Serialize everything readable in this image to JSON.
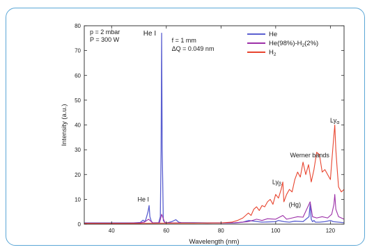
{
  "colors": {
    "frame": "#5aa6d6",
    "He": "#5a5fd0",
    "He_H2": "#9c2fa8",
    "H2": "#e8442e",
    "axis": "#222222"
  },
  "chart_data": {
    "type": "line",
    "xlabel": "Wavelength (nm)",
    "ylabel": "Intensity (a.u.)",
    "xlim": [
      30,
      125
    ],
    "ylim": [
      0,
      80
    ],
    "xticks": [
      40,
      60,
      80,
      100,
      120
    ],
    "yticks": [
      0,
      10,
      20,
      30,
      40,
      50,
      60,
      70,
      80
    ],
    "grid": false,
    "legend_position": "top-right",
    "params_left": [
      "p = 2 mbar",
      "P = 300 W"
    ],
    "params_right": [
      "f = 1 mm",
      "ΔQ = 0.049 nm"
    ],
    "annotations": [
      {
        "text": "He I",
        "x": 58.3,
        "y": 75
      },
      {
        "text": "He I",
        "x": 53.7,
        "y": 8
      },
      {
        "text": "Lyβ",
        "x": 102.6,
        "y": 15
      },
      {
        "text": "(Hg)",
        "x": 107,
        "y": 7
      },
      {
        "text": "Werner bands",
        "x": 116,
        "y": 27
      },
      {
        "text": "Lyα",
        "x": 121.6,
        "y": 41
      }
    ],
    "series": [
      {
        "name": "He",
        "legend": "He",
        "color_key": "He",
        "x": [
          30,
          40,
          48,
          50.5,
          51.5,
          52.2,
          52.6,
          53.0,
          53.3,
          53.7,
          54.0,
          54.5,
          55,
          57.2,
          57.8,
          58.1,
          58.3,
          58.5,
          58.9,
          59.5,
          60.5,
          62,
          63.5,
          64.5,
          65.5,
          70,
          75,
          80,
          85,
          88,
          90,
          95,
          100,
          101,
          103,
          105,
          107,
          110,
          112.2,
          112.6,
          113,
          113.5,
          114,
          114.5,
          116,
          118,
          120,
          121,
          123,
          125
        ],
        "y": [
          0.5,
          0.5,
          0.5,
          0.7,
          1.6,
          1.0,
          2.2,
          3.8,
          5.0,
          7.5,
          3.0,
          1.2,
          0.5,
          0.6,
          3.0,
          30,
          77,
          30,
          1.5,
          0.6,
          0.6,
          1.0,
          1.8,
          0.8,
          0.6,
          0.6,
          0.5,
          0.5,
          0.5,
          0.8,
          1.5,
          0.8,
          1.0,
          1.5,
          1.0,
          0.8,
          1.2,
          1.0,
          3.0,
          8.0,
          2.0,
          1.0,
          1.5,
          0.8,
          0.8,
          1.0,
          1.5,
          1.0,
          0.8,
          0.6
        ]
      },
      {
        "name": "He(98%)-H2(2%)",
        "legend": "He(98%)-H",
        "legend_sub": "2",
        "legend_tail": "(2%)",
        "color_key": "He_H2",
        "x": [
          30,
          45,
          50,
          52,
          53.5,
          55,
          57.5,
          58.3,
          59.5,
          65,
          75,
          85,
          90,
          93,
          95,
          97,
          100,
          102.6,
          104,
          106,
          108,
          110,
          112.6,
          113.5,
          115,
          117,
          119,
          120.5,
          121.3,
          121.6,
          122,
          123,
          125
        ],
        "y": [
          0.4,
          0.4,
          0.5,
          0.8,
          2.0,
          0.5,
          0.5,
          4.0,
          0.5,
          0.5,
          0.4,
          0.6,
          1.0,
          2.0,
          1.5,
          2.2,
          2.0,
          3.5,
          2.0,
          2.5,
          3.0,
          2.8,
          9.0,
          3.0,
          2.5,
          3.0,
          2.5,
          4.0,
          8.0,
          12.0,
          6.0,
          3.0,
          2.0
        ]
      },
      {
        "name": "H2",
        "legend": "H",
        "legend_sub": "2",
        "legend_tail": "",
        "color_key": "H2",
        "x": [
          30,
          50,
          60,
          70,
          80,
          84,
          86,
          88,
          90,
          91,
          92,
          93,
          94,
          95,
          96,
          97,
          98,
          99,
          100,
          101,
          102,
          102.6,
          103,
          104,
          105,
          106,
          107,
          108,
          109,
          110,
          111,
          112,
          113,
          114,
          115,
          116,
          117,
          118,
          119,
          120,
          120.5,
          121.0,
          121.3,
          121.6,
          122.0,
          122.5,
          123,
          124,
          125
        ],
        "y": [
          0.3,
          0.3,
          0.4,
          0.4,
          0.5,
          0.8,
          1.5,
          2.5,
          4.5,
          3.5,
          6.0,
          7.0,
          5.5,
          7.5,
          7.0,
          9.0,
          10.0,
          8.0,
          12.0,
          10.5,
          14.0,
          17.0,
          9.0,
          12.0,
          14.0,
          13.0,
          18.0,
          21.0,
          19.0,
          25.0,
          20.0,
          24.0,
          17.0,
          22.0,
          29.0,
          28.0,
          21.0,
          22.0,
          20.0,
          18.0,
          25.0,
          32.0,
          36.0,
          40.0,
          30.0,
          22.0,
          15.0,
          13.0,
          14.0
        ]
      }
    ]
  }
}
